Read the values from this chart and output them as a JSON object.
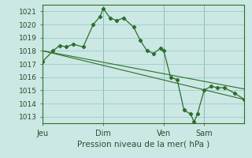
{
  "xlabel": "Pression niveau de la mer( hPa )",
  "bg_color": "#cce8e4",
  "grid_color": "#99cccc",
  "line_color": "#2d6e2d",
  "marker_color": "#2d6e2d",
  "ylim": [
    1012.5,
    1021.5
  ],
  "yticks": [
    1013,
    1014,
    1015,
    1016,
    1017,
    1018,
    1019,
    1020,
    1021
  ],
  "xtick_labels": [
    "Jeu",
    "Dim",
    "Ven",
    "Sam"
  ],
  "xtick_positions": [
    0,
    36,
    72,
    96
  ],
  "vline_positions": [
    0,
    36,
    72,
    96
  ],
  "xlim": [
    0,
    120
  ],
  "series1": [
    [
      0,
      1017.2
    ],
    [
      6,
      1018.0
    ],
    [
      10,
      1018.4
    ],
    [
      14,
      1018.3
    ],
    [
      18,
      1018.5
    ],
    [
      24,
      1018.3
    ],
    [
      30,
      1020.0
    ],
    [
      34,
      1020.6
    ],
    [
      36,
      1021.2
    ],
    [
      40,
      1020.5
    ],
    [
      44,
      1020.3
    ],
    [
      48,
      1020.5
    ],
    [
      54,
      1019.8
    ],
    [
      58,
      1018.8
    ],
    [
      62,
      1018.0
    ],
    [
      66,
      1017.8
    ],
    [
      70,
      1018.2
    ],
    [
      72,
      1018.0
    ],
    [
      76,
      1016.0
    ],
    [
      80,
      1015.8
    ],
    [
      84,
      1013.5
    ],
    [
      88,
      1013.2
    ],
    [
      90,
      1012.6
    ],
    [
      92,
      1013.2
    ],
    [
      96,
      1015.0
    ],
    [
      100,
      1015.3
    ],
    [
      104,
      1015.2
    ],
    [
      108,
      1015.2
    ],
    [
      114,
      1014.8
    ],
    [
      120,
      1014.3
    ]
  ],
  "series2": [
    [
      0,
      1018.0
    ],
    [
      120,
      1014.3
    ]
  ],
  "series3": [
    [
      0,
      1018.0
    ],
    [
      120,
      1015.1
    ]
  ],
  "xlabel_fontsize": 7.5,
  "ytick_fontsize": 6.5,
  "xtick_fontsize": 7.0
}
